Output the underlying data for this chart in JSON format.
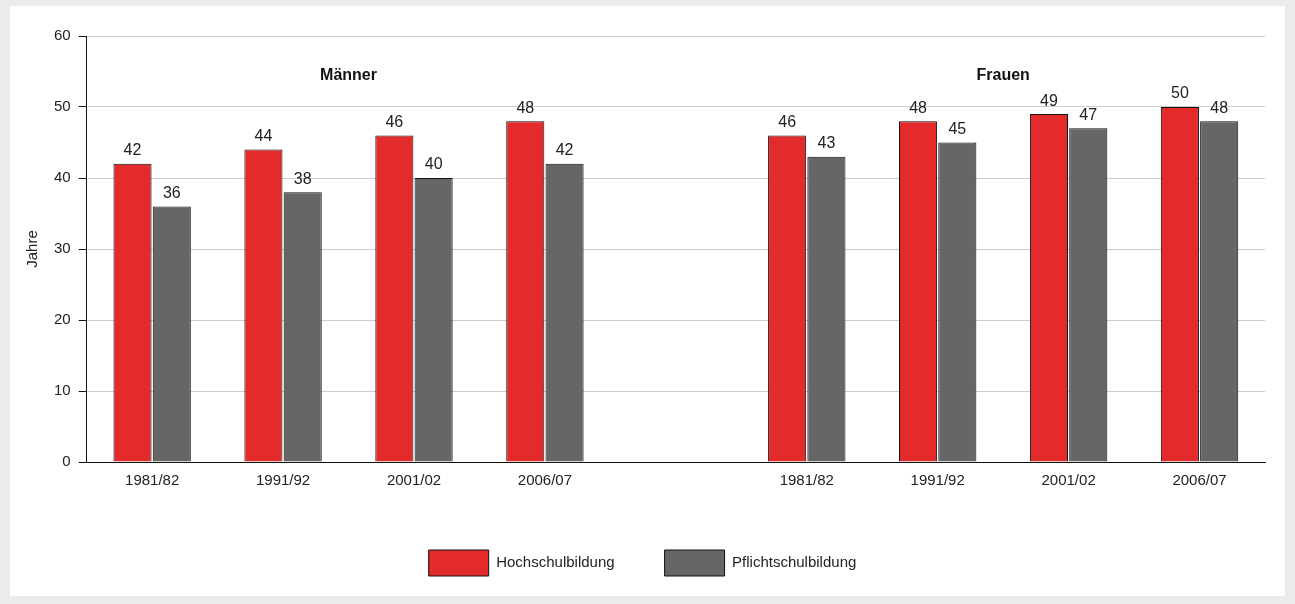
{
  "chart_data": {
    "type": "bar",
    "ylabel": "Jahre",
    "categories": [
      "1981/82",
      "1991/92",
      "2001/02",
      "2006/07",
      null,
      "1981/82",
      "1991/92",
      "2001/02",
      "2006/07"
    ],
    "series": [
      {
        "name": "Hochschulbildung",
        "color": "#e32b2b",
        "values": [
          42,
          44,
          46,
          48,
          null,
          46,
          48,
          49,
          50
        ]
      },
      {
        "name": "Pflichtschulbildung",
        "color": "#666666",
        "values": [
          36,
          38,
          40,
          42,
          null,
          43,
          45,
          47,
          48
        ]
      }
    ],
    "ylim": [
      0,
      60
    ],
    "yticks": [
      0,
      10,
      20,
      30,
      40,
      50,
      60
    ],
    "grid": "y",
    "legend": "bottom",
    "data_labels": true,
    "annotations": [
      "Männer",
      "Frauen"
    ]
  }
}
